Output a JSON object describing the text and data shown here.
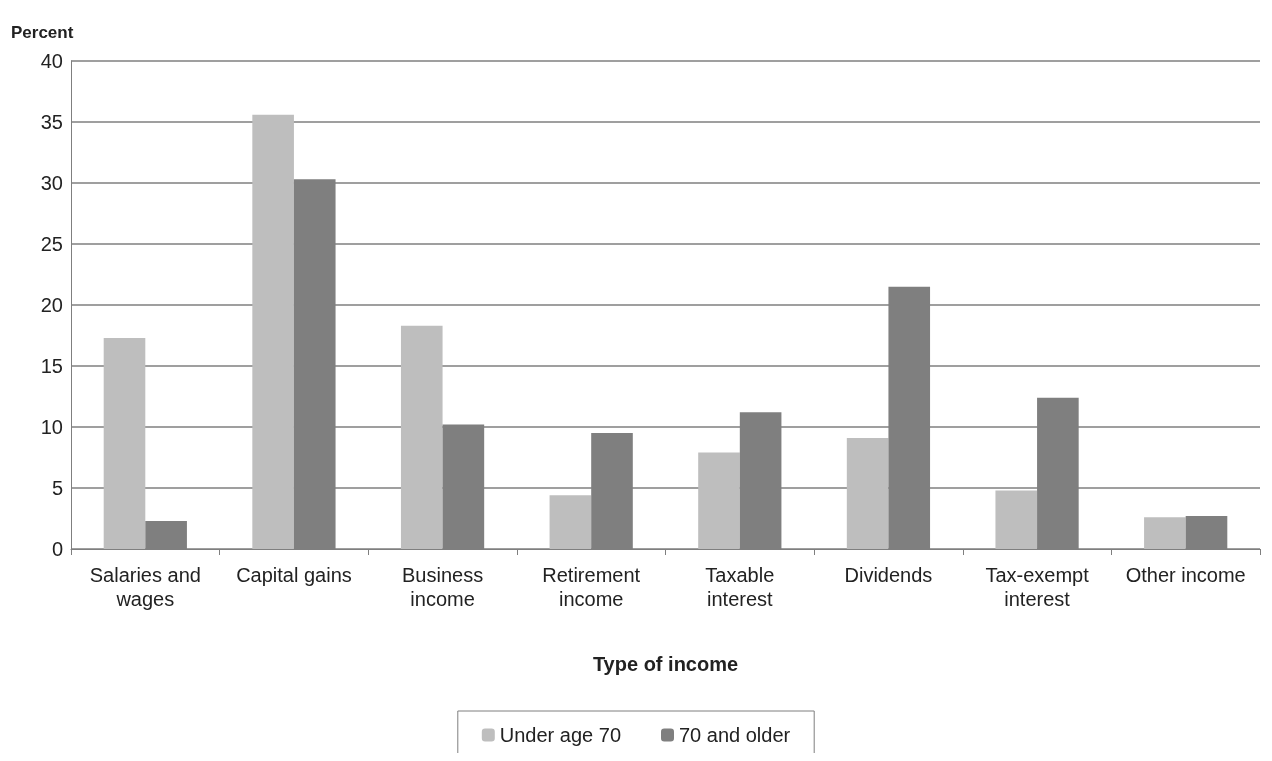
{
  "chart_data": {
    "type": "bar",
    "ylabel": "Percent",
    "xlabel": "Type of income",
    "categories": [
      "Salaries and\nwages",
      "Capital gains",
      "Business\nincome",
      "Retirement\nincome",
      "Taxable\ninterest",
      "Dividends",
      "Tax-exempt\ninterest",
      "Other income"
    ],
    "series": [
      {
        "name": "Under age 70",
        "color": "#bebebe",
        "values": [
          17.3,
          35.6,
          18.3,
          4.4,
          7.9,
          9.1,
          4.8,
          2.6
        ]
      },
      {
        "name": "70 and older",
        "color": "#7f7f7f",
        "values": [
          2.3,
          30.3,
          10.2,
          9.5,
          11.2,
          21.5,
          12.4,
          2.7
        ]
      }
    ],
    "ylim": [
      0,
      40
    ],
    "yticks": [
      0,
      5,
      10,
      15,
      20,
      25,
      30,
      35,
      40
    ],
    "grid": "y",
    "legend": "bottom"
  }
}
